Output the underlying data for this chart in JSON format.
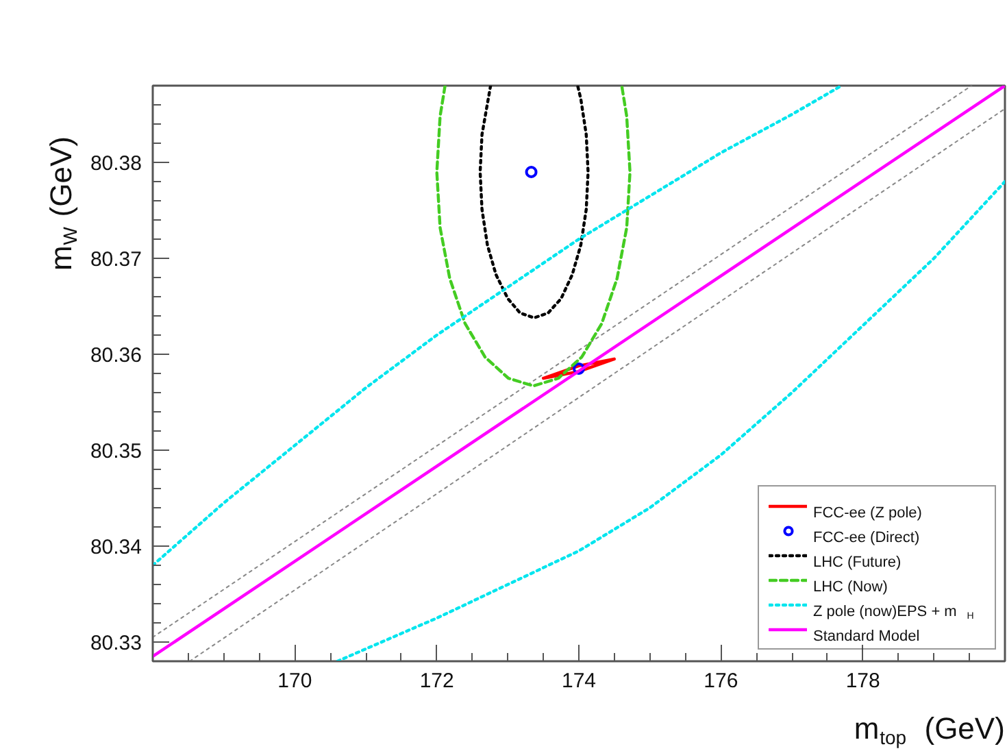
{
  "chart_data": {
    "type": "line",
    "xlabel": "m$_{top}$ (GeV)",
    "ylabel": "m$_{W}$ (GeV)",
    "xlim": [
      168,
      180
    ],
    "ylim": [
      80.328,
      80.388
    ],
    "xticks": [
      {
        "value": 168,
        "label": null
      },
      {
        "value": 168.5,
        "label": null
      },
      {
        "value": 169,
        "label": null
      },
      {
        "value": 169.5,
        "label": null
      },
      170,
      {
        "value": 170.5,
        "label": null
      },
      {
        "value": 171,
        "label": null
      },
      {
        "value": 171.5,
        "label": null
      },
      172,
      {
        "value": 172.5,
        "label": null
      },
      {
        "value": 173,
        "label": null
      },
      {
        "value": 173.5,
        "label": null
      },
      174,
      {
        "value": 174.5,
        "label": null
      },
      {
        "value": 175,
        "label": null
      },
      {
        "value": 175.5,
        "label": null
      },
      176,
      {
        "value": 176.5,
        "label": null
      },
      {
        "value": 177,
        "label": null
      },
      {
        "value": 177.5,
        "label": null
      },
      178,
      {
        "value": 178.5,
        "label": null
      },
      {
        "value": 179,
        "label": null
      },
      {
        "value": 179.5,
        "label": null
      },
      {
        "value": 180,
        "label": null
      }
    ],
    "yticks": [
      {
        "value": 80.328,
        "label": null
      },
      80.33,
      {
        "value": 80.332,
        "label": null
      },
      {
        "value": 80.334,
        "label": null
      },
      {
        "value": 80.336,
        "label": null
      },
      {
        "value": 80.338,
        "label": null
      },
      80.34,
      {
        "value": 80.342,
        "label": null
      },
      {
        "value": 80.344,
        "label": null
      },
      {
        "value": 80.346,
        "label": null
      },
      {
        "value": 80.348,
        "label": null
      },
      80.35,
      {
        "value": 80.352,
        "label": null
      },
      {
        "value": 80.354,
        "label": null
      },
      {
        "value": 80.356,
        "label": null
      },
      {
        "value": 80.358,
        "label": null
      },
      80.36,
      {
        "value": 80.362,
        "label": null
      },
      {
        "value": 80.364,
        "label": null
      },
      {
        "value": 80.366,
        "label": null
      },
      {
        "value": 80.368,
        "label": null
      },
      80.37,
      {
        "value": 80.372,
        "label": null
      },
      {
        "value": 80.374,
        "label": null
      },
      {
        "value": 80.376,
        "label": null
      },
      {
        "value": 80.378,
        "label": null
      },
      80.38,
      {
        "value": 80.382,
        "label": null
      },
      {
        "value": 80.384,
        "label": null
      },
      {
        "value": 80.386,
        "label": null
      },
      {
        "value": 80.388,
        "label": null
      }
    ],
    "grid": false,
    "legend": "bottom right",
    "marker": "none",
    "series": [
      {
        "color": "#888888",
        "line_style": "dotted",
        "x": [
          168,
          179.53
        ],
        "values": [
          80.3305,
          80.388
        ]
      },
      {
        "color": "#888888",
        "line_style": "dotted",
        "x": [
          168.52,
          180
        ],
        "values": [
          80.328,
          80.3856
        ]
      },
      {
        "name": "FCC-ee (Z pole)",
        "color": "#ff0000",
        "line_style": "solid",
        "x": [
          174.5,
          174.0,
          173.5,
          null,
          173.5,
          174.0,
          174.5
        ],
        "values": [
          80.3595,
          80.3588,
          80.3575,
          null,
          80.3575,
          80.3582,
          80.3595
        ]
      },
      {
        "name": "FCC-ee (Direct)",
        "type": "scatter",
        "marker": "circle",
        "color": "#0000ff",
        "x": [
          173.33,
          174.0
        ],
        "values": [
          80.379,
          80.3585
        ]
      },
      {
        "name": "LHC (Future)",
        "color": "#000000",
        "line_style": "dotted",
        "x": [
          172.757,
          172.636,
          172.61,
          172.636,
          172.712,
          172.833,
          173.0,
          173.173,
          173.37,
          173.567,
          173.75,
          173.907,
          174.028,
          174.104,
          174.13,
          174.104,
          174.028,
          173.983
        ],
        "values": [
          80.388,
          80.3829,
          80.379,
          80.3751,
          80.3714,
          80.3683,
          80.3658,
          80.3643,
          80.3638,
          80.3643,
          80.3658,
          80.3683,
          80.3714,
          80.3751,
          80.379,
          80.3829,
          80.3866,
          80.388
        ]
      },
      {
        "name": "LHC (Now)",
        "color": "#44cc22",
        "line_style": "dashed",
        "x": [
          172.116,
          172.046,
          172.0,
          172.046,
          172.182,
          172.398,
          172.68,
          173.008,
          173.36,
          173.712,
          174.04,
          174.322,
          174.538,
          174.674,
          174.72,
          174.674,
          174.604
        ],
        "values": [
          80.388,
          80.3848,
          80.379,
          80.3732,
          80.3679,
          80.3632,
          80.3597,
          80.3575,
          80.3567,
          80.3575,
          80.3597,
          80.3632,
          80.3679,
          80.3732,
          80.379,
          80.3848,
          80.388
        ]
      },
      {
        "name": "Z pole (now)EPS + m$_{H}$",
        "color": "#00e5ee",
        "line_style": "dotted",
        "x": [
          168,
          169,
          170,
          171,
          172,
          173,
          174,
          175,
          176,
          177,
          177.7,
          null,
          170.6,
          172,
          174,
          175,
          176,
          177,
          178,
          179,
          180
        ],
        "values": [
          80.338,
          80.3445,
          80.3505,
          80.3565,
          80.362,
          80.367,
          80.372,
          80.3765,
          80.381,
          80.385,
          80.388,
          null,
          80.328,
          80.3325,
          80.3395,
          80.344,
          80.3495,
          80.356,
          80.363,
          80.37,
          80.378
        ]
      },
      {
        "name": "Standard Model",
        "color": "#ff00ff",
        "line_style": "solid",
        "x": [
          168,
          180
        ],
        "values": [
          80.3285,
          80.388
        ]
      }
    ]
  }
}
